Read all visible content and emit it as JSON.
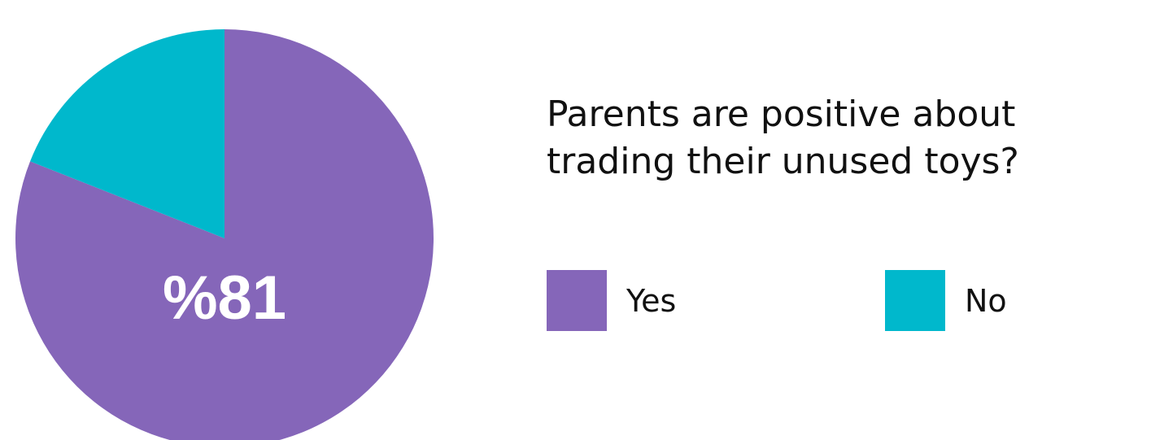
{
  "chart_data": {
    "type": "pie",
    "title_lines": [
      "Parents are positive about",
      "trading their unused toys?"
    ],
    "slices": [
      {
        "name": "Yes",
        "value": 81,
        "color": "#8566B9"
      },
      {
        "name": "No",
        "value": 19,
        "color": "#00B8CC"
      }
    ],
    "data_label": "%81",
    "legend_placement": "right"
  }
}
